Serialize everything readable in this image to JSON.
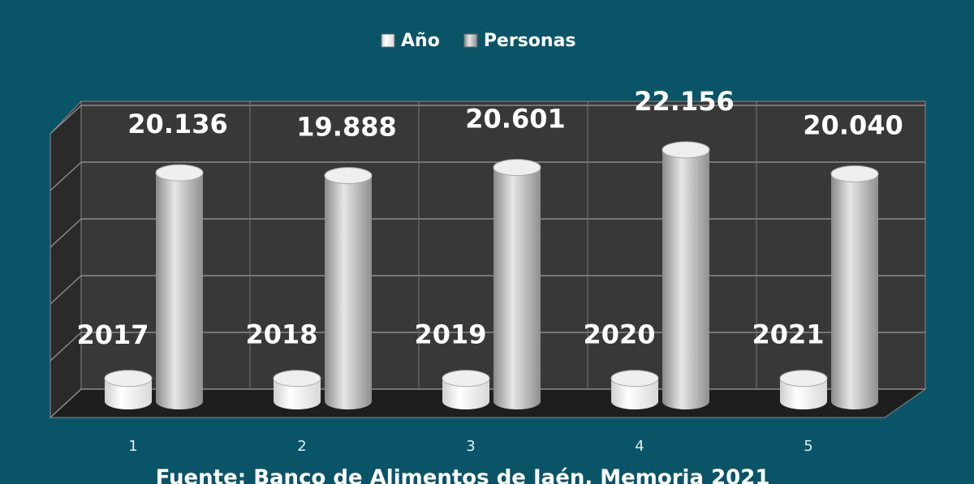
{
  "chart_data": {
    "type": "bar3d",
    "categories": [
      "1",
      "2",
      "3",
      "4",
      "5"
    ],
    "series": [
      {
        "name": "Año",
        "color": "#ffffff",
        "values": [
          2017,
          2018,
          2019,
          2020,
          2021
        ]
      },
      {
        "name": "Personas",
        "color": "#bdbdbd",
        "values": [
          20136,
          19888,
          20601,
          22156,
          20040
        ],
        "value_labels": [
          "20.136",
          "19.888",
          "20.601",
          "22.156",
          "20.040"
        ]
      }
    ],
    "ylim": [
      0,
      25000
    ],
    "yticks": [
      0,
      5000,
      10000,
      15000,
      20000,
      25000
    ],
    "show_tick_labels": false,
    "grid": true,
    "legend": "top",
    "caption": "Fuente: Banco de Alimentos de Jaén. Memoria 2021"
  }
}
